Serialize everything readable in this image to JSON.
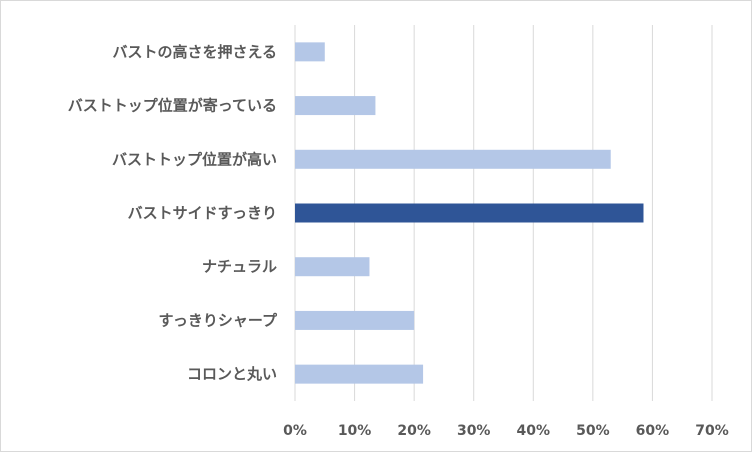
{
  "chart_data": {
    "type": "bar",
    "orientation": "horizontal",
    "categories": [
      "バストの高さを押さえる",
      "バストトップ位置が寄っている",
      "バストトップ位置が高い",
      "バストサイドすっきり",
      "ナチュラル",
      "すっきりシャープ",
      "コロンと丸い"
    ],
    "values": [
      5,
      13.5,
      53,
      58.5,
      12.5,
      20,
      21.5
    ],
    "highlight_index": 3,
    "xlim": [
      0,
      70
    ],
    "xticks": [
      "0%",
      "10%",
      "20%",
      "30%",
      "40%",
      "50%",
      "60%",
      "70%"
    ],
    "grid": true,
    "colors": {
      "bar": "#b4c7e7",
      "highlight": "#2f5597",
      "grid": "#d9d9d9",
      "text": "#595959"
    }
  }
}
